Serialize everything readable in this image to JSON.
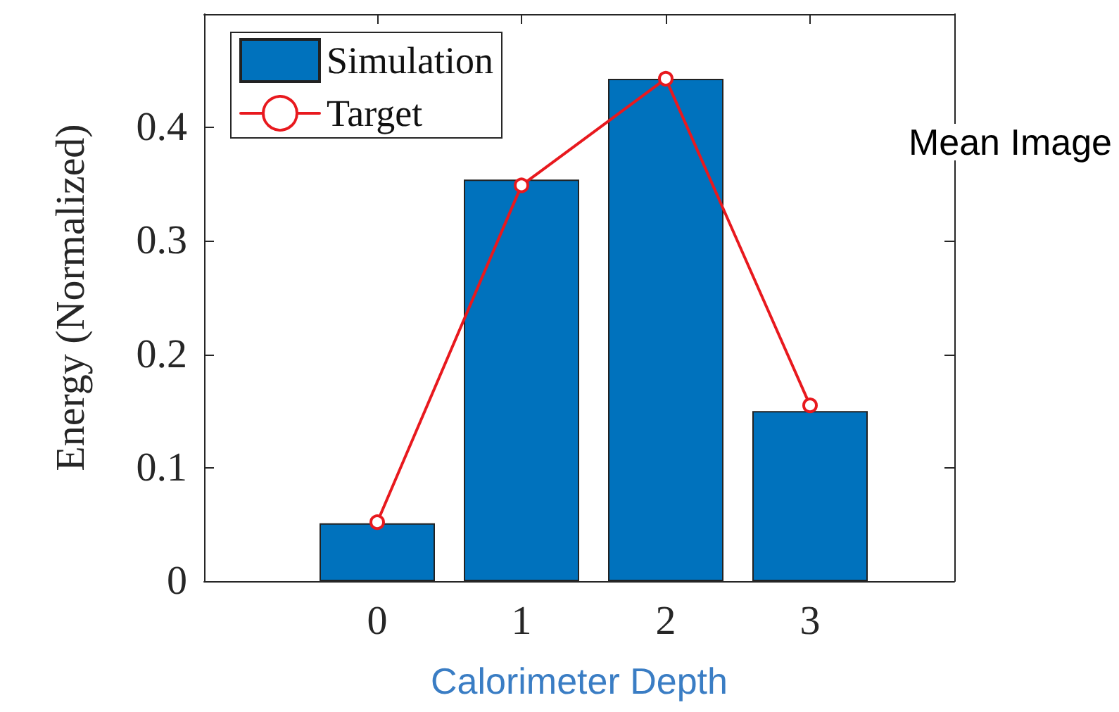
{
  "chart_data": {
    "type": "bar",
    "xlabel": "Calorimeter Depth",
    "ylabel": "Energy (Normalized)",
    "annotations": [
      "Mean Image"
    ],
    "x": [
      0,
      1,
      2,
      3
    ],
    "xlim": [
      -1.2,
      4
    ],
    "xticks": [
      0,
      1,
      2,
      3
    ],
    "ylim": [
      0,
      0.5
    ],
    "yticks": [
      0,
      0.1,
      0.2,
      0.3,
      0.4
    ],
    "series": [
      {
        "name": "Simulation",
        "color": "#0072bd",
        "values": [
          0.051,
          0.354,
          0.443,
          0.15
        ]
      },
      {
        "name": "Target",
        "type": "line",
        "color": "#e8191e",
        "marker": "circle",
        "line_style": "solid",
        "values": [
          0.052,
          0.349,
          0.443,
          0.155
        ]
      }
    ],
    "grid": false,
    "legend": "top left"
  }
}
